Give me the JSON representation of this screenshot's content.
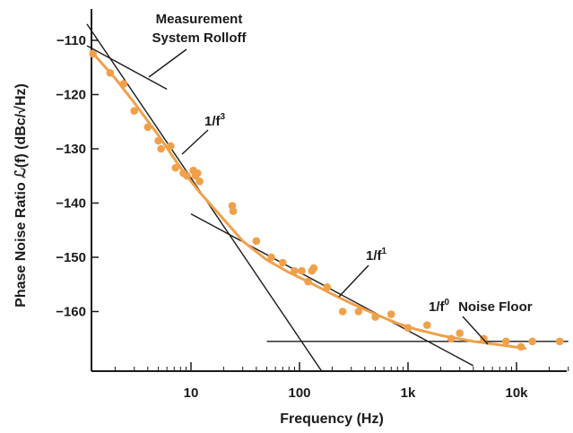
{
  "chart_data": {
    "type": "scatter",
    "title": "",
    "xlabel": "Frequency (Hz)",
    "ylabel": "Phase Noise Ratio ℒ(f) (dBc/√Hz)",
    "x_scale": "log",
    "xlim": [
      1.2,
      30000
    ],
    "ylim": [
      -170,
      -105
    ],
    "x_ticks": [
      10,
      100,
      1000,
      10000
    ],
    "x_tick_labels": [
      "10",
      "100",
      "1k",
      "10k"
    ],
    "y_ticks": [
      -110,
      -120,
      -130,
      -140,
      -150,
      -160
    ],
    "y_tick_labels": [
      "−110",
      "−120",
      "−130",
      "−140",
      "−150",
      "−160"
    ],
    "grid": false,
    "series": [
      {
        "kind": "points",
        "color": "#f0a04a",
        "x": [
          1.25,
          1.8,
          2.4,
          3.0,
          4.0,
          5.0,
          5.3,
          6.5,
          7.2,
          8.5,
          9.2,
          10.5,
          11.0,
          11.5,
          12.0,
          24.0,
          24.5,
          40,
          55,
          70,
          90,
          105,
          120,
          130,
          135,
          180,
          250,
          350,
          500,
          700,
          1000,
          1500,
          2500,
          3000,
          5000,
          8000,
          11000,
          14000,
          25000
        ],
        "y": [
          -112.5,
          -116,
          -118,
          -123,
          -126,
          -128.5,
          -130,
          -129.5,
          -133.5,
          -134.5,
          -135,
          -134,
          -135,
          -134.5,
          -136,
          -140.5,
          -141.5,
          -147,
          -150,
          -151,
          -152.5,
          -152.5,
          -154.5,
          -152.5,
          -152,
          -155.5,
          -160,
          -160,
          -161,
          -160.5,
          -163,
          -162.5,
          -165,
          -164,
          -165,
          -165.5,
          -166.5,
          -165.5,
          -165.5
        ]
      },
      {
        "kind": "fit-curve",
        "color": "#f0a04a",
        "x": [
          1.2,
          2,
          3,
          5,
          8,
          12,
          20,
          30,
          50,
          80,
          120,
          200,
          300,
          500,
          800,
          1200,
          2000,
          4000,
          8000,
          12000
        ],
        "y": [
          -112,
          -117,
          -121.5,
          -127.5,
          -133.5,
          -138,
          -143,
          -147,
          -150.5,
          -152.8,
          -154.5,
          -156.8,
          -158.5,
          -160.5,
          -162.2,
          -163.3,
          -164.4,
          -165.5,
          -166.3,
          -166.8
        ]
      }
    ],
    "asymptotes": [
      {
        "name": "1/f³",
        "slope": "1/f3",
        "x": [
          1.1,
          160
        ],
        "y": [
          -107,
          -171
        ]
      },
      {
        "name": "1/f¹",
        "slope": "1/f1",
        "x": [
          10,
          4000
        ],
        "y": [
          -142,
          -170
        ]
      },
      {
        "name": "1/f⁰ Noise Floor",
        "slope": "flat",
        "x": [
          50,
          30000
        ],
        "y": [
          -165.5,
          -165.5
        ]
      },
      {
        "name": "Measurement System Rolloff",
        "slope": "rolloff",
        "x": [
          1.1,
          6.0
        ],
        "y": [
          -111,
          -119
        ]
      }
    ],
    "annotations": [
      {
        "text_lines": [
          "Measurement",
          "System Rolloff"
        ]
      },
      {
        "text": "1/f",
        "sup": "3"
      },
      {
        "text": "1/f",
        "sup": "1"
      },
      {
        "text": "1/f",
        "sup": "0",
        "suffix": "Noise Floor"
      }
    ]
  }
}
